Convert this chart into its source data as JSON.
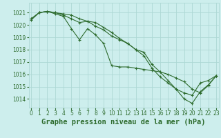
{
  "title": "Graphe pression niveau de la mer (hPa)",
  "bg_color": "#cdeeed",
  "grid_color": "#add8d5",
  "line_color": "#2d6b2d",
  "x_ticks": [
    0,
    1,
    2,
    3,
    4,
    5,
    6,
    7,
    8,
    9,
    10,
    11,
    12,
    13,
    14,
    15,
    16,
    17,
    18,
    19,
    20,
    21,
    22,
    23
  ],
  "y_ticks": [
    1014,
    1015,
    1016,
    1017,
    1018,
    1019,
    1020,
    1021
  ],
  "ylim": [
    1013.3,
    1021.8
  ],
  "xlim": [
    -0.3,
    23.3
  ],
  "series": [
    [
      1020.5,
      1021.0,
      1021.1,
      1021.0,
      1020.9,
      1020.8,
      1020.5,
      1020.3,
      1020.2,
      1019.8,
      1019.4,
      1018.9,
      1018.5,
      1018.0,
      1017.8,
      1016.8,
      1016.2,
      1015.5,
      1014.8,
      1014.5,
      1014.3,
      1015.3,
      1015.5,
      1015.9
    ],
    [
      1020.5,
      1021.0,
      1021.1,
      1021.0,
      1020.8,
      1020.5,
      1020.2,
      1020.3,
      1019.9,
      1019.6,
      1019.1,
      1018.8,
      1018.5,
      1018.0,
      1017.5,
      1016.5,
      1015.8,
      1015.3,
      1014.8,
      1014.0,
      1013.65,
      1014.6,
      1015.15,
      1015.9
    ],
    [
      1020.4,
      1021.0,
      1021.1,
      1020.9,
      1020.7,
      1019.7,
      1018.8,
      1019.7,
      1019.2,
      1018.5,
      1016.7,
      1016.6,
      1016.6,
      1016.5,
      1016.4,
      1016.3,
      1016.2,
      1016.0,
      1015.7,
      1015.4,
      1014.8,
      1014.5,
      1015.1,
      1015.9
    ]
  ],
  "title_fontsize": 7.5,
  "tick_fontsize": 5.5
}
